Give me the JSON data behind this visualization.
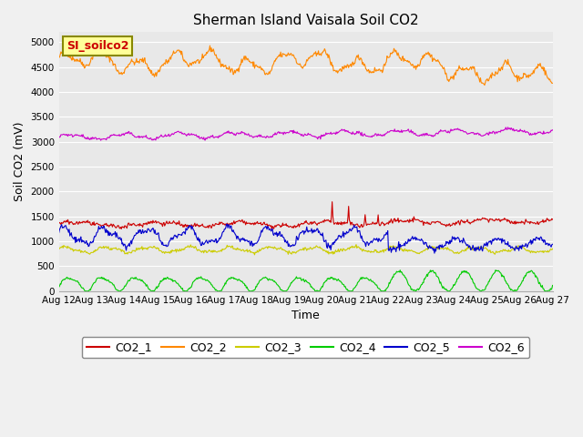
{
  "title": "Sherman Island Vaisala Soil CO2",
  "ylabel": "Soil CO2 (mV)",
  "xlabel": "Time",
  "annotation": "SI_soilco2",
  "x_start": 12,
  "x_end": 27,
  "x_ticks": [
    12,
    13,
    14,
    15,
    16,
    17,
    18,
    19,
    20,
    21,
    22,
    23,
    24,
    25,
    26,
    27
  ],
  "x_tick_labels": [
    "Aug 12",
    "Aug 13",
    "Aug 14",
    "Aug 15",
    "Aug 16",
    "Aug 17",
    "Aug 18",
    "Aug 19",
    "Aug 20",
    "Aug 21",
    "Aug 22",
    "Aug 23",
    "Aug 24",
    "Aug 25",
    "Aug 26",
    "Aug 27"
  ],
  "ylim": [
    0,
    5200
  ],
  "y_ticks": [
    0,
    500,
    1000,
    1500,
    2000,
    2500,
    3000,
    3500,
    4000,
    4500,
    5000
  ],
  "colors": {
    "CO2_1": "#cc0000",
    "CO2_2": "#ff8800",
    "CO2_3": "#cccc00",
    "CO2_4": "#00cc00",
    "CO2_5": "#0000cc",
    "CO2_6": "#cc00cc"
  },
  "bg_color": "#e8e8e8",
  "fig_bg_color": "#f0f0f0",
  "grid_color": "#ffffff",
  "annotation_text_color": "#cc0000",
  "annotation_bg_color": "#ffff99",
  "annotation_edge_color": "#888800",
  "legend_labels": [
    "CO2_1",
    "CO2_2",
    "CO2_3",
    "CO2_4",
    "CO2_5",
    "CO2_6"
  ],
  "title_fontsize": 11,
  "axis_fontsize": 9,
  "tick_fontsize": 7.5,
  "legend_fontsize": 9
}
